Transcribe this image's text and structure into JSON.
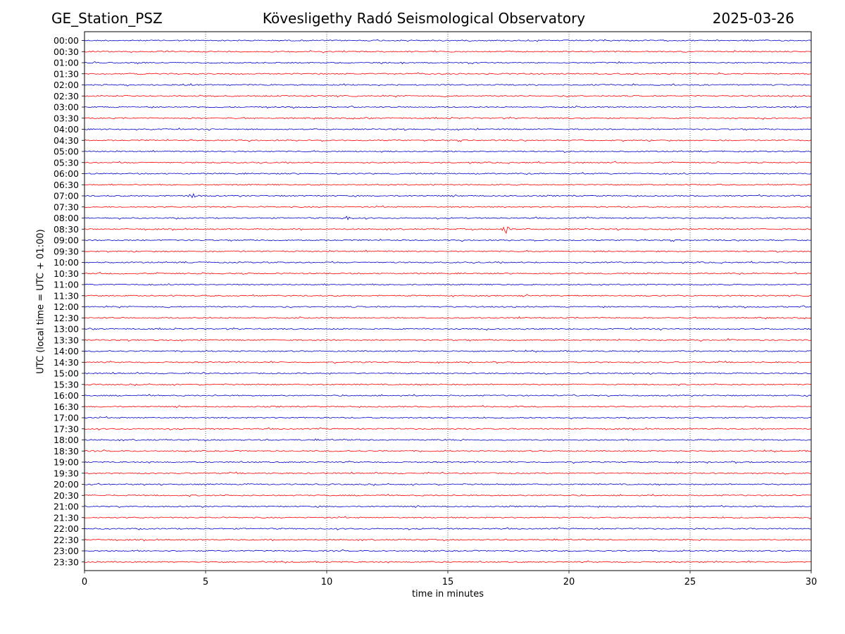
{
  "header": {
    "station": "GE_Station_PSZ",
    "title": "Kövesligethy Radó Seismological Observatory",
    "date": "2025-03-26"
  },
  "chart_data": {
    "type": "line",
    "xlabel": "time in minutes",
    "ylabel": "UTC (local time = UTC + 01:00)",
    "xlim": [
      0,
      30
    ],
    "x_ticks": [
      "0",
      "5",
      "10",
      "15",
      "20",
      "25",
      "30"
    ],
    "vertical_grid": "dotted at every 5 minutes",
    "row_labels": [
      "00:00",
      "00:30",
      "01:00",
      "01:30",
      "02:00",
      "02:30",
      "03:00",
      "03:30",
      "04:00",
      "04:30",
      "05:00",
      "05:30",
      "06:00",
      "06:30",
      "07:00",
      "07:30",
      "08:00",
      "08:30",
      "09:00",
      "09:30",
      "10:00",
      "10:30",
      "11:00",
      "11:30",
      "12:00",
      "12:30",
      "13:00",
      "13:30",
      "14:00",
      "14:30",
      "15:00",
      "15:30",
      "16:00",
      "16:30",
      "17:00",
      "17:30",
      "18:00",
      "18:30",
      "19:00",
      "19:30",
      "20:00",
      "20:30",
      "21:00",
      "21:30",
      "22:00",
      "22:30",
      "23:00",
      "23:30"
    ],
    "trace_colors": [
      "#0000cc",
      "#ff0000"
    ],
    "events": [
      {
        "row": "07:00",
        "minute": 4.4,
        "amplitude": 0.6
      },
      {
        "row": "08:00",
        "minute": 10.9,
        "amplitude": 0.5
      },
      {
        "row": "08:30",
        "minute": 17.4,
        "amplitude": 1.0
      },
      {
        "row": "13:30",
        "minute": 26.5,
        "amplitude": 0.3
      }
    ]
  }
}
